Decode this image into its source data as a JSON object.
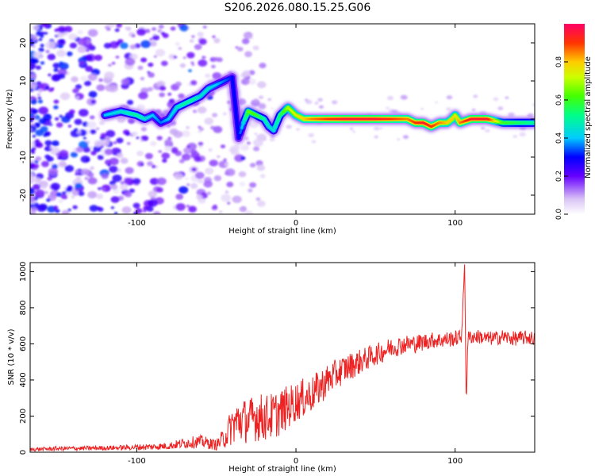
{
  "title": "S206.2026.080.15.25.G06",
  "chart_data": [
    {
      "type": "heatmap",
      "xlabel": "Height of straight line (km)",
      "ylabel": "Frequency (Hz)",
      "xlim": [
        -167,
        150
      ],
      "ylim": [
        -25,
        25
      ],
      "xticks": [
        -100,
        0,
        100
      ],
      "xtick_labels": [
        "-100",
        "0",
        "100"
      ],
      "yticks": [
        -20,
        -10,
        0,
        10,
        20
      ],
      "ytick_labels": [
        "-20",
        "-10",
        "0",
        "10",
        "20"
      ],
      "colorbar": {
        "label": "Normalized spectral amplitude",
        "range": [
          0,
          1
        ],
        "ticks": [
          0.0,
          0.2,
          0.4,
          0.6,
          0.8
        ],
        "tick_labels": [
          "0.0",
          "0.2",
          "0.4",
          "0.6",
          "0.8"
        ]
      },
      "ridge": {
        "x": [
          -120,
          -110,
          -100,
          -95,
          -90,
          -85,
          -80,
          -75,
          -70,
          -65,
          -60,
          -55,
          -50,
          -45,
          -40,
          -36,
          -33,
          -30,
          -25,
          -20,
          -17,
          -14,
          -10,
          -5,
          0,
          5,
          10,
          20,
          30,
          40,
          50,
          60,
          70,
          75,
          80,
          85,
          90,
          95,
          98,
          100,
          103,
          110,
          120,
          130,
          140,
          150
        ],
        "y": [
          1,
          2,
          1,
          0,
          1,
          -1,
          0,
          3,
          4,
          5,
          6,
          8,
          9,
          10,
          11,
          -5,
          -1,
          2,
          1,
          0,
          -2,
          -3,
          1,
          3,
          1,
          0,
          0,
          0,
          0,
          0,
          0,
          0,
          0,
          -1,
          -1,
          -2,
          -1,
          -1,
          0,
          1,
          -1,
          0,
          0,
          -1,
          -1,
          -1
        ],
        "amplitude": [
          0.4,
          0.45,
          0.5,
          0.45,
          0.4,
          0.35,
          0.4,
          0.45,
          0.5,
          0.5,
          0.45,
          0.45,
          0.4,
          0.35,
          0.3,
          0.3,
          0.45,
          0.65,
          0.6,
          0.5,
          0.45,
          0.45,
          0.55,
          0.7,
          0.75,
          0.8,
          0.85,
          0.9,
          0.95,
          0.95,
          0.95,
          0.9,
          0.85,
          0.9,
          0.95,
          0.9,
          0.85,
          0.8,
          0.8,
          0.75,
          0.85,
          0.95,
          0.95,
          0.6,
          0.55,
          0.5
        ]
      },
      "noise_extent_x": [
        -167,
        -40
      ]
    },
    {
      "type": "line",
      "xlabel": "Height of straight line (km)",
      "ylabel": "SNR (10 * v/v)",
      "xlim": [
        -167,
        150
      ],
      "ylim": [
        0,
        1050
      ],
      "xticks": [
        -100,
        0,
        100
      ],
      "xtick_labels": [
        "-100",
        "0",
        "100"
      ],
      "yticks": [
        0,
        200,
        400,
        600,
        800,
        1000
      ],
      "ytick_labels": [
        "0",
        "200",
        "400",
        "600",
        "800",
        "1000"
      ],
      "color": "#ee2222",
      "series": [
        {
          "name": "SNR",
          "x": [
            -167,
            -150,
            -130,
            -110,
            -90,
            -80,
            -70,
            -60,
            -50,
            -45,
            -40,
            -35,
            -30,
            -25,
            -20,
            -15,
            -10,
            -5,
            0,
            5,
            10,
            15,
            20,
            25,
            30,
            35,
            40,
            45,
            50,
            55,
            60,
            65,
            70,
            75,
            80,
            85,
            90,
            95,
            100,
            104,
            106,
            107,
            108,
            110,
            115,
            120,
            125,
            130,
            135,
            140,
            145,
            150
          ],
          "y": [
            15,
            20,
            22,
            25,
            30,
            35,
            50,
            60,
            40,
            80,
            150,
            180,
            170,
            200,
            190,
            200,
            220,
            250,
            280,
            300,
            320,
            360,
            400,
            430,
            460,
            480,
            500,
            520,
            540,
            560,
            580,
            590,
            600,
            600,
            610,
            620,
            620,
            625,
            630,
            640,
            1040,
            250,
            630,
            640,
            640,
            630,
            630,
            640,
            630,
            630,
            635,
            630
          ],
          "noise_amplitude": [
            10,
            12,
            12,
            14,
            18,
            20,
            30,
            35,
            30,
            60,
            110,
            130,
            120,
            140,
            130,
            130,
            130,
            120,
            110,
            110,
            100,
            100,
            90,
            85,
            80,
            75,
            70,
            65,
            60,
            60,
            55,
            55,
            50,
            50,
            50,
            45,
            45,
            45,
            45,
            40,
            0,
            0,
            40,
            40,
            40,
            40,
            40,
            40,
            40,
            40,
            40,
            40
          ]
        }
      ]
    }
  ]
}
